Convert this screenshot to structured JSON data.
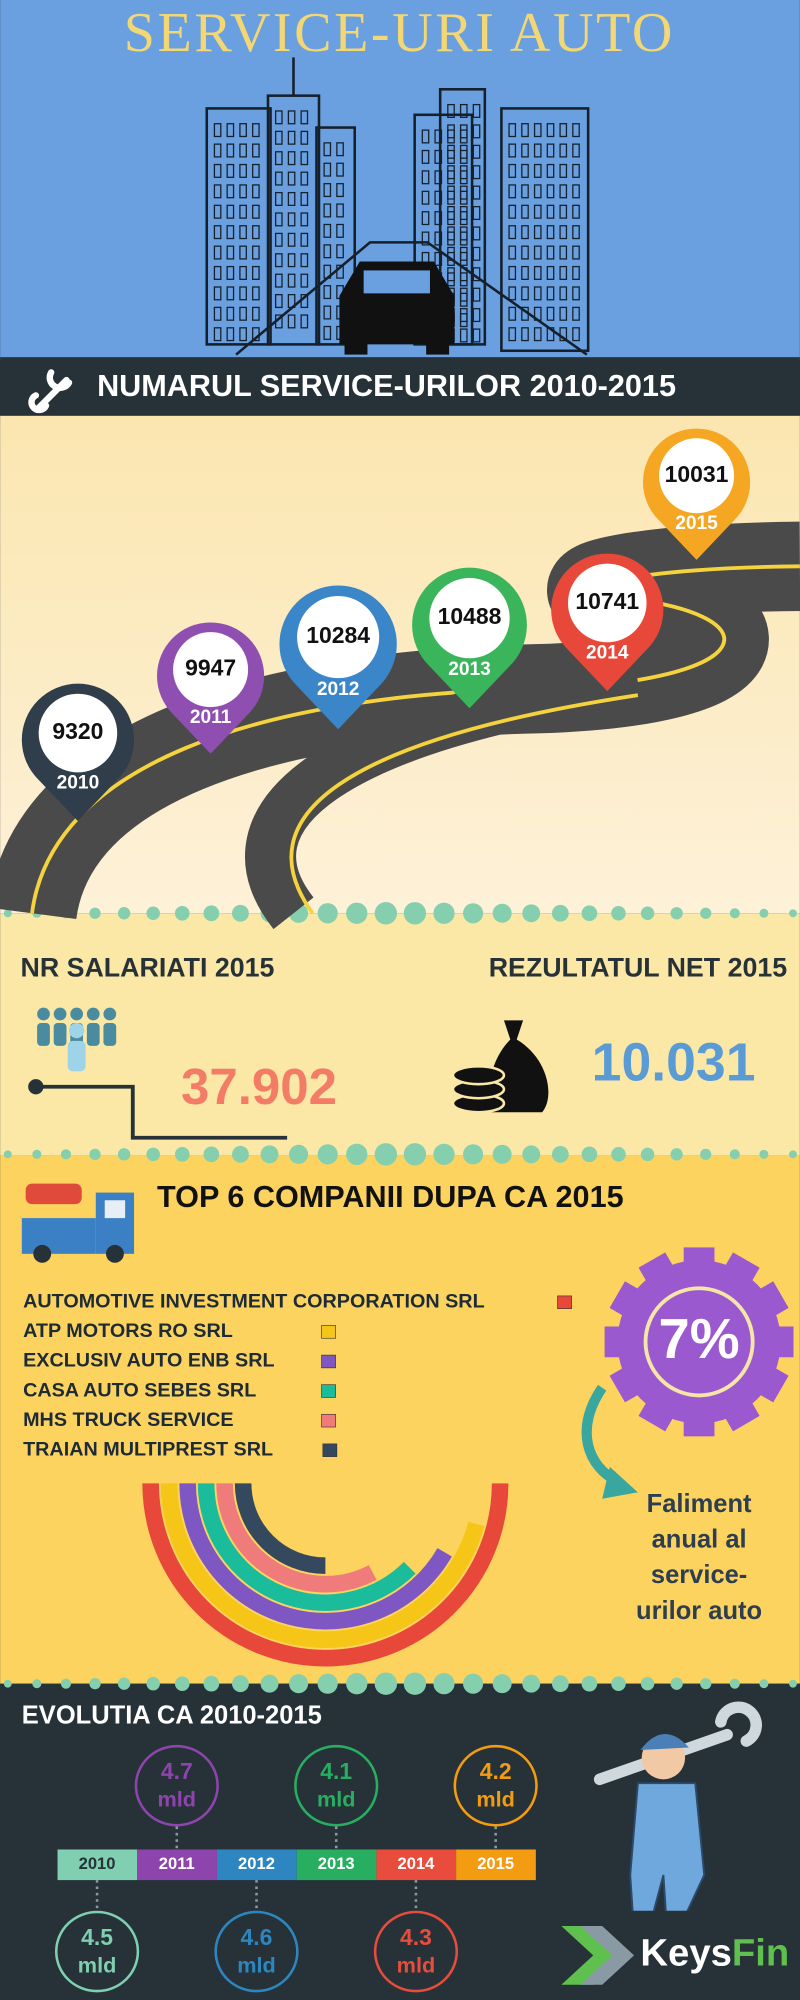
{
  "header": {
    "title": "SERVICE-URI AUTO"
  },
  "services": {
    "title": "NUMARUL SERVICE-URILOR  2010-2015",
    "pins": [
      {
        "value": "9320",
        "year": "2010"
      },
      {
        "value": "9947",
        "year": "2011"
      },
      {
        "value": "10284",
        "year": "2012"
      },
      {
        "value": "10488",
        "year": "2013"
      },
      {
        "value": "10741",
        "year": "2014"
      },
      {
        "value": "10031",
        "year": "2015"
      }
    ]
  },
  "stats": {
    "employees": {
      "label": "NR SALARIATI 2015",
      "value": "37.902"
    },
    "net_result": {
      "label": "REZULTATUL NET 2015",
      "value": "10.031"
    }
  },
  "top": {
    "title": "TOP 6 COMPANII DUPA CA 2015",
    "companies": [
      "AUTOMOTIVE INVESTMENT CORPORATION SRL",
      "ATP MOTORS RO SRL",
      "EXCLUSIV AUTO ENB SRL",
      "CASA AUTO SEBES SRL",
      "MHS TRUCK SERVICE",
      "TRAIAN MULTIPREST  SRL"
    ]
  },
  "bankruptcy": {
    "rate": "7%",
    "caption": [
      "Faliment",
      "anual al",
      "service-",
      "urilor auto"
    ]
  },
  "evolution": {
    "title": "EVOLUTIA CA 2010-2015",
    "years": [
      {
        "year": "2010",
        "value": "4.5",
        "unit": "mld"
      },
      {
        "year": "2011",
        "value": "4.7",
        "unit": "mld"
      },
      {
        "year": "2012",
        "value": "4.6",
        "unit": "mld"
      },
      {
        "year": "2013",
        "value": "4.1",
        "unit": "mld"
      },
      {
        "year": "2014",
        "value": "4.3",
        "unit": "mld"
      },
      {
        "year": "2015",
        "value": "4.2",
        "unit": "mld"
      }
    ]
  },
  "logo": {
    "keys": "Keys",
    "fin": "Fin"
  }
}
